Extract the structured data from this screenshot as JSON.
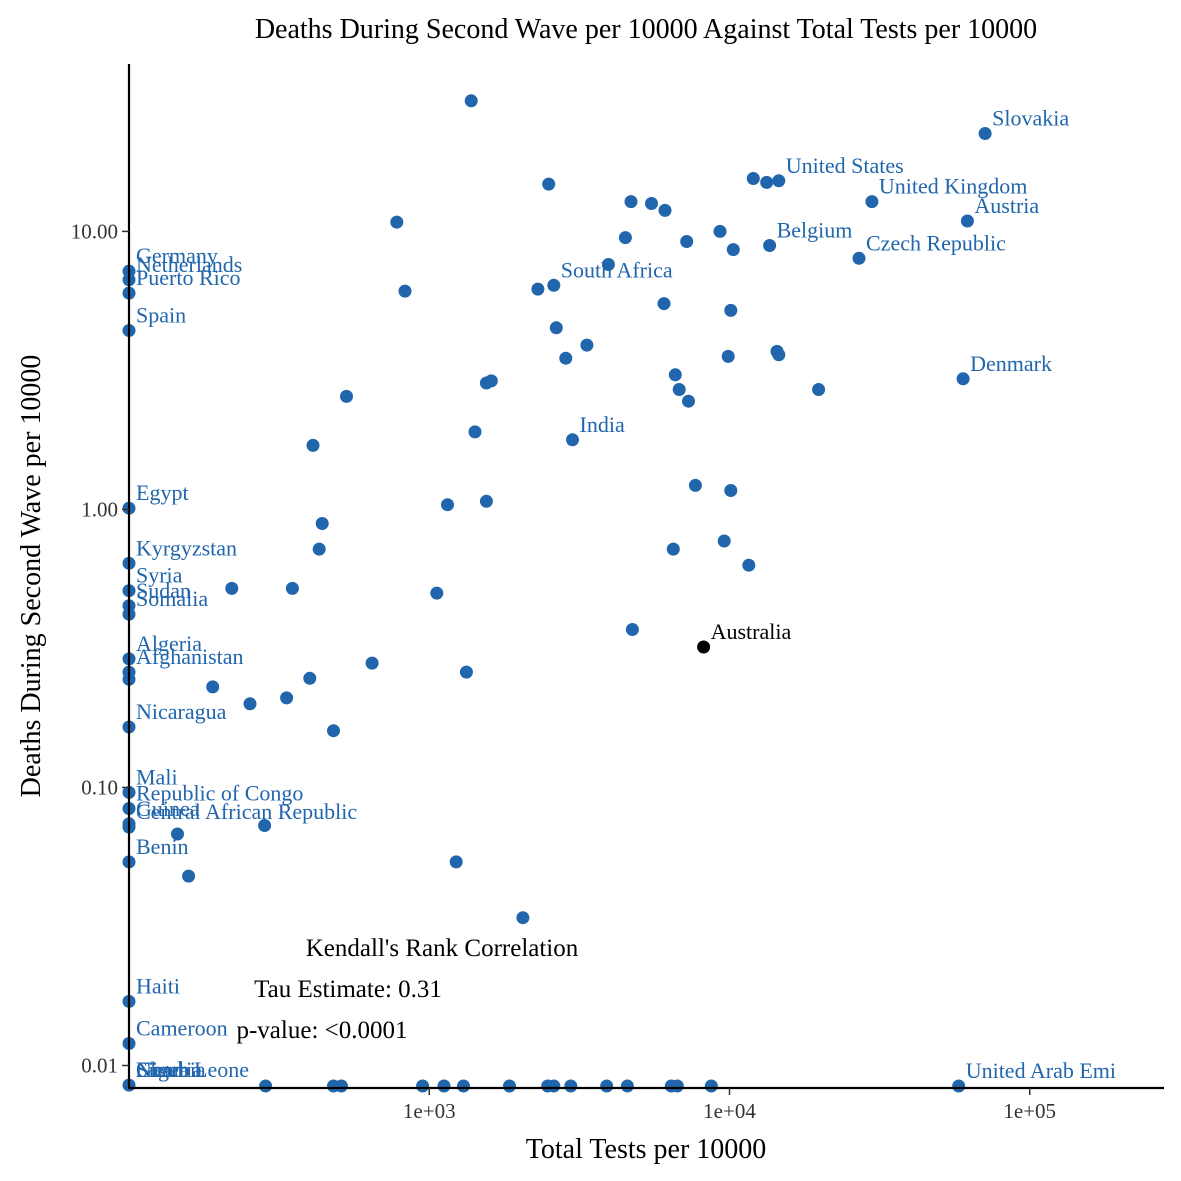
{
  "chart_data": {
    "type": "scatter",
    "title": "Deaths During Second Wave per 10000 Against Total Tests per 10000",
    "xlabel": "Total Tests per 10000",
    "ylabel": "Deaths During Second Wave per 10000",
    "x_scale": "log10",
    "y_scale": "log10",
    "xlim": [
      100,
      280000
    ],
    "ylim": [
      0.0083,
      40
    ],
    "x_ticks": [
      1000,
      10000,
      100000
    ],
    "x_tick_labels": [
      "1e+03",
      "1e+04",
      "1e+05"
    ],
    "y_ticks": [
      0.01,
      0.1,
      1,
      10
    ],
    "y_tick_labels": [
      "0.01",
      "0.10",
      "1.00",
      "10.00"
    ],
    "grid": false,
    "colors": {
      "default": "#2166ac",
      "highlight": "#000000"
    },
    "points": [
      {
        "x": 100,
        "y": 7.2
      },
      {
        "x": 100,
        "y": 6.7
      },
      {
        "x": 100,
        "y": 6.0
      },
      {
        "x": 100,
        "y": 4.4
      },
      {
        "x": 100,
        "y": 1.01
      },
      {
        "x": 100,
        "y": 0.64
      },
      {
        "x": 100,
        "y": 0.51
      },
      {
        "x": 100,
        "y": 0.45
      },
      {
        "x": 100,
        "y": 0.42
      },
      {
        "x": 100,
        "y": 0.29
      },
      {
        "x": 100,
        "y": 0.26
      },
      {
        "x": 100,
        "y": 0.245
      },
      {
        "x": 100,
        "y": 0.165
      },
      {
        "x": 100,
        "y": 0.096
      },
      {
        "x": 100,
        "y": 0.084
      },
      {
        "x": 100,
        "y": 0.074
      },
      {
        "x": 100,
        "y": 0.072
      },
      {
        "x": 100,
        "y": 0.054
      },
      {
        "x": 100,
        "y": 0.017
      },
      {
        "x": 100,
        "y": 0.012
      },
      {
        "x": 100,
        "y": 0.0085
      },
      {
        "x": 1380,
        "y": 29.5
      },
      {
        "x": 2500,
        "y": 14.8
      },
      {
        "x": 4700,
        "y": 12.8
      },
      {
        "x": 5500,
        "y": 12.6
      },
      {
        "x": 6100,
        "y": 11.9
      },
      {
        "x": 12000,
        "y": 15.5
      },
      {
        "x": 13300,
        "y": 15.0
      },
      {
        "x": 14600,
        "y": 15.2
      },
      {
        "x": 29800,
        "y": 12.8
      },
      {
        "x": 71000,
        "y": 22.5
      },
      {
        "x": 62000,
        "y": 10.9
      },
      {
        "x": 780,
        "y": 10.8
      },
      {
        "x": 4500,
        "y": 9.5
      },
      {
        "x": 7200,
        "y": 9.2
      },
      {
        "x": 9300,
        "y": 10.0
      },
      {
        "x": 10300,
        "y": 8.6
      },
      {
        "x": 13600,
        "y": 8.9
      },
      {
        "x": 27000,
        "y": 8.0
      },
      {
        "x": 3950,
        "y": 7.6
      },
      {
        "x": 830,
        "y": 6.1
      },
      {
        "x": 2300,
        "y": 6.2
      },
      {
        "x": 2600,
        "y": 6.4
      },
      {
        "x": 6050,
        "y": 5.5
      },
      {
        "x": 10100,
        "y": 5.2
      },
      {
        "x": 2650,
        "y": 4.5
      },
      {
        "x": 3350,
        "y": 3.9
      },
      {
        "x": 2850,
        "y": 3.5
      },
      {
        "x": 9900,
        "y": 3.55
      },
      {
        "x": 14400,
        "y": 3.7
      },
      {
        "x": 14600,
        "y": 3.6
      },
      {
        "x": 1550,
        "y": 2.85
      },
      {
        "x": 1610,
        "y": 2.9
      },
      {
        "x": 530,
        "y": 2.55
      },
      {
        "x": 6600,
        "y": 3.05
      },
      {
        "x": 6800,
        "y": 2.7
      },
      {
        "x": 7300,
        "y": 2.45
      },
      {
        "x": 19800,
        "y": 2.7
      },
      {
        "x": 60000,
        "y": 2.95
      },
      {
        "x": 1420,
        "y": 1.9
      },
      {
        "x": 410,
        "y": 1.7
      },
      {
        "x": 3000,
        "y": 1.78
      },
      {
        "x": 7700,
        "y": 1.22
      },
      {
        "x": 10100,
        "y": 1.17
      },
      {
        "x": 1150,
        "y": 1.04
      },
      {
        "x": 1550,
        "y": 1.07
      },
      {
        "x": 440,
        "y": 0.89
      },
      {
        "x": 430,
        "y": 0.72
      },
      {
        "x": 6500,
        "y": 0.72
      },
      {
        "x": 9600,
        "y": 0.77
      },
      {
        "x": 11600,
        "y": 0.63
      },
      {
        "x": 220,
        "y": 0.52
      },
      {
        "x": 350,
        "y": 0.52
      },
      {
        "x": 1060,
        "y": 0.5
      },
      {
        "x": 4750,
        "y": 0.37
      },
      {
        "x": 645,
        "y": 0.28
      },
      {
        "x": 1330,
        "y": 0.26
      },
      {
        "x": 190,
        "y": 0.23
      },
      {
        "x": 400,
        "y": 0.247
      },
      {
        "x": 253,
        "y": 0.2
      },
      {
        "x": 335,
        "y": 0.21
      },
      {
        "x": 480,
        "y": 0.16
      },
      {
        "x": 145,
        "y": 0.068
      },
      {
        "x": 283,
        "y": 0.073
      },
      {
        "x": 158,
        "y": 0.048
      },
      {
        "x": 1230,
        "y": 0.054
      },
      {
        "x": 2050,
        "y": 0.034
      },
      {
        "x": 285,
        "y": 0.0082
      },
      {
        "x": 480,
        "y": 0.0082
      },
      {
        "x": 510,
        "y": 0.0082
      },
      {
        "x": 950,
        "y": 0.0082
      },
      {
        "x": 1120,
        "y": 0.0082
      },
      {
        "x": 1300,
        "y": 0.0082
      },
      {
        "x": 1850,
        "y": 0.0082
      },
      {
        "x": 2480,
        "y": 0.0082
      },
      {
        "x": 2600,
        "y": 0.0082
      },
      {
        "x": 2960,
        "y": 0.0082
      },
      {
        "x": 3900,
        "y": 0.0082
      },
      {
        "x": 4570,
        "y": 0.0082
      },
      {
        "x": 6400,
        "y": 0.0082
      },
      {
        "x": 6700,
        "y": 0.0082
      },
      {
        "x": 8700,
        "y": 0.0082
      },
      {
        "x": 58000,
        "y": 0.0082
      },
      {
        "x": 8200,
        "y": 0.32,
        "highlight": true
      }
    ],
    "labels": [
      {
        "text": "Slovakia",
        "x": 71000,
        "y": 22.5
      },
      {
        "text": "United States",
        "x": 14600,
        "y": 15.2
      },
      {
        "text": "United Kingdom",
        "x": 29800,
        "y": 12.8
      },
      {
        "text": "Austria",
        "x": 62000,
        "y": 10.9
      },
      {
        "text": "Belgium",
        "x": 13600,
        "y": 8.9
      },
      {
        "text": "Czech Republic",
        "x": 27000,
        "y": 8.0
      },
      {
        "text": "South Africa",
        "x": 2600,
        "y": 6.4
      },
      {
        "text": "Denmark",
        "x": 60000,
        "y": 2.95
      },
      {
        "text": "India",
        "x": 3000,
        "y": 1.78
      },
      {
        "text": "Australia",
        "x": 8200,
        "y": 0.32,
        "highlight": true
      },
      {
        "text": "Germany",
        "x": 100,
        "y": 7.2
      },
      {
        "text": "Netherlands",
        "x": 100,
        "y": 6.7
      },
      {
        "text": "Puerto Rico",
        "x": 100,
        "y": 6.0
      },
      {
        "text": "Spain",
        "x": 100,
        "y": 4.4
      },
      {
        "text": "Egypt",
        "x": 100,
        "y": 1.01
      },
      {
        "text": "Kyrgyzstan",
        "x": 100,
        "y": 0.64
      },
      {
        "text": "Syria",
        "x": 100,
        "y": 0.51
      },
      {
        "text": "Sudan",
        "x": 100,
        "y": 0.45
      },
      {
        "text": "Somalia",
        "x": 100,
        "y": 0.42
      },
      {
        "text": "Algeria",
        "x": 100,
        "y": 0.29
      },
      {
        "text": "Afghanistan",
        "x": 100,
        "y": 0.26
      },
      {
        "text": "Nicaragua",
        "x": 100,
        "y": 0.165
      },
      {
        "text": "Mali",
        "x": 100,
        "y": 0.096
      },
      {
        "text": "Republic of Congo",
        "x": 100,
        "y": 0.084
      },
      {
        "text": "Guinea",
        "x": 100,
        "y": 0.074
      },
      {
        "text": "Central African Republic",
        "x": 100,
        "y": 0.072
      },
      {
        "text": "Benin",
        "x": 100,
        "y": 0.054
      },
      {
        "text": "Haiti",
        "x": 100,
        "y": 0.017
      },
      {
        "text": "Cameroon",
        "x": 100,
        "y": 0.012
      },
      {
        "text": "Chad",
        "x": 100,
        "y": 0.0085
      },
      {
        "text": "Nigeria",
        "x": 100,
        "y": 0.0085
      },
      {
        "text": "Niger",
        "x": 100,
        "y": 0.0085
      },
      {
        "text": "Gambia",
        "x": 100,
        "y": 0.0085
      },
      {
        "text": "Sierra Leone",
        "x": 100,
        "y": 0.0085
      },
      {
        "text": "United Arab Emi",
        "x": 58000,
        "y": 0.0082
      }
    ],
    "annotation": {
      "line1": "Kendall's Rank Correlation",
      "line2": "Tau Estimate: 0.31",
      "line3": "p-value: <0.0001"
    }
  }
}
